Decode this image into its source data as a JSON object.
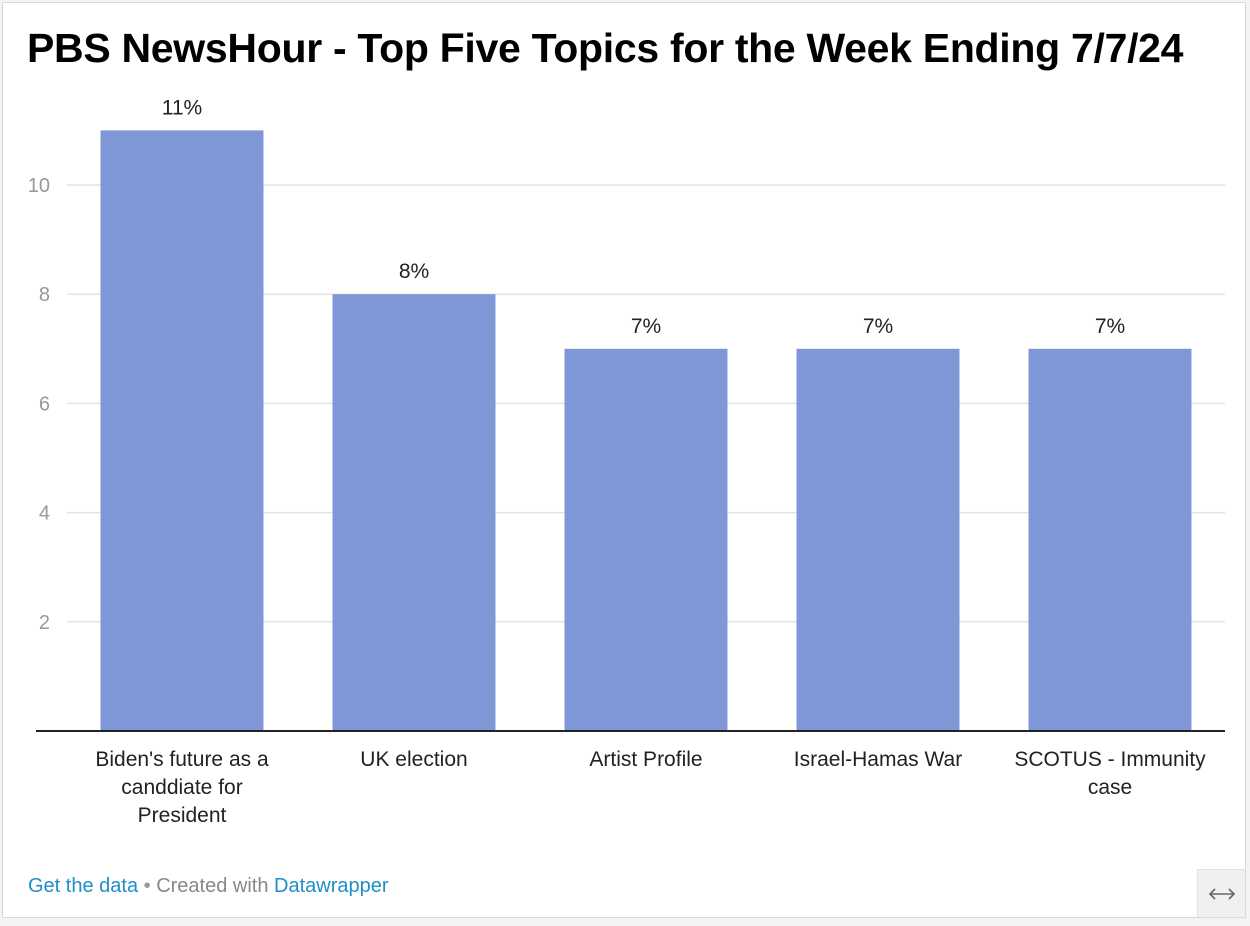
{
  "title": "PBS NewsHour - Top Five Topics for the Week Ending 7/7/24",
  "chart_data": {
    "type": "bar",
    "title": "PBS NewsHour - Top Five Topics for the Week Ending 7/7/24",
    "categories": [
      [
        "Biden's future as a",
        "canddiate for",
        "President"
      ],
      [
        "UK election"
      ],
      [
        "Artist Profile"
      ],
      [
        "Israel-Hamas War"
      ],
      [
        "SCOTUS - Immunity",
        "case"
      ]
    ],
    "values": [
      11,
      8,
      7,
      7,
      7
    ],
    "value_labels": [
      "11%",
      "8%",
      "7%",
      "7%",
      "7%"
    ],
    "ylim": [
      0,
      12
    ],
    "yticks": [
      2,
      4,
      6,
      8,
      10
    ],
    "xlabel": "",
    "ylabel": "",
    "grid": true,
    "bar_color": "#7f97d6"
  },
  "footer": {
    "get_data": "Get the data",
    "separator": " • ",
    "created_with": "Created with ",
    "datawrapper": "Datawrapper"
  },
  "resize_icon": "horizontal-resize-arrows-icon"
}
